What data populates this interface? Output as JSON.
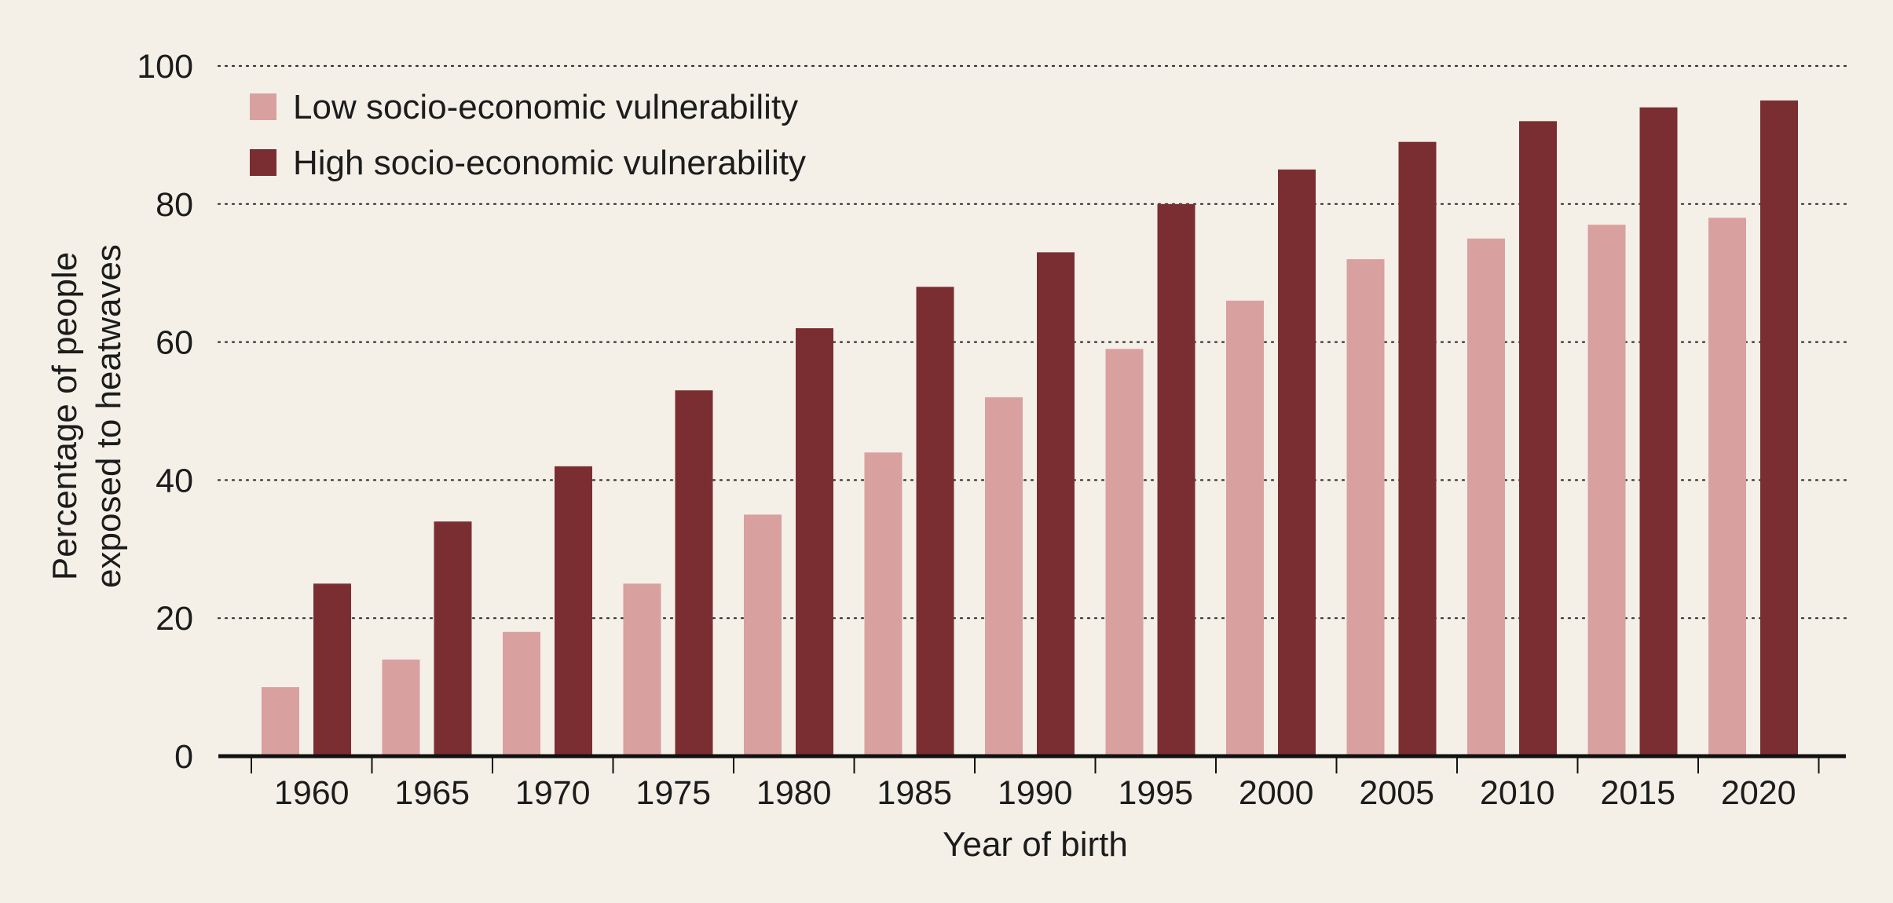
{
  "chart_data": {
    "type": "bar",
    "xlabel": "Year of birth",
    "ylabel_lines": [
      "Percentage of people",
      "exposed to heatwaves"
    ],
    "ylim": [
      0,
      100
    ],
    "yticks": [
      0,
      20,
      40,
      60,
      80,
      100
    ],
    "grid": "horizontal-dotted",
    "legend_placement": "top-left",
    "categories": [
      "1960",
      "1965",
      "1970",
      "1975",
      "1980",
      "1985",
      "1990",
      "1995",
      "2000",
      "2005",
      "2010",
      "2015",
      "2020"
    ],
    "series": [
      {
        "name": "Low socio-economic vulnerability",
        "color": "#d9a0a0",
        "values": [
          10,
          14,
          18,
          25,
          35,
          44,
          52,
          59,
          66,
          72,
          75,
          77,
          78
        ]
      },
      {
        "name": "High socio-economic vulnerability",
        "color": "#7b2e31",
        "values": [
          25,
          34,
          42,
          53,
          62,
          68,
          73,
          80,
          85,
          89,
          92,
          94,
          95
        ]
      }
    ]
  }
}
